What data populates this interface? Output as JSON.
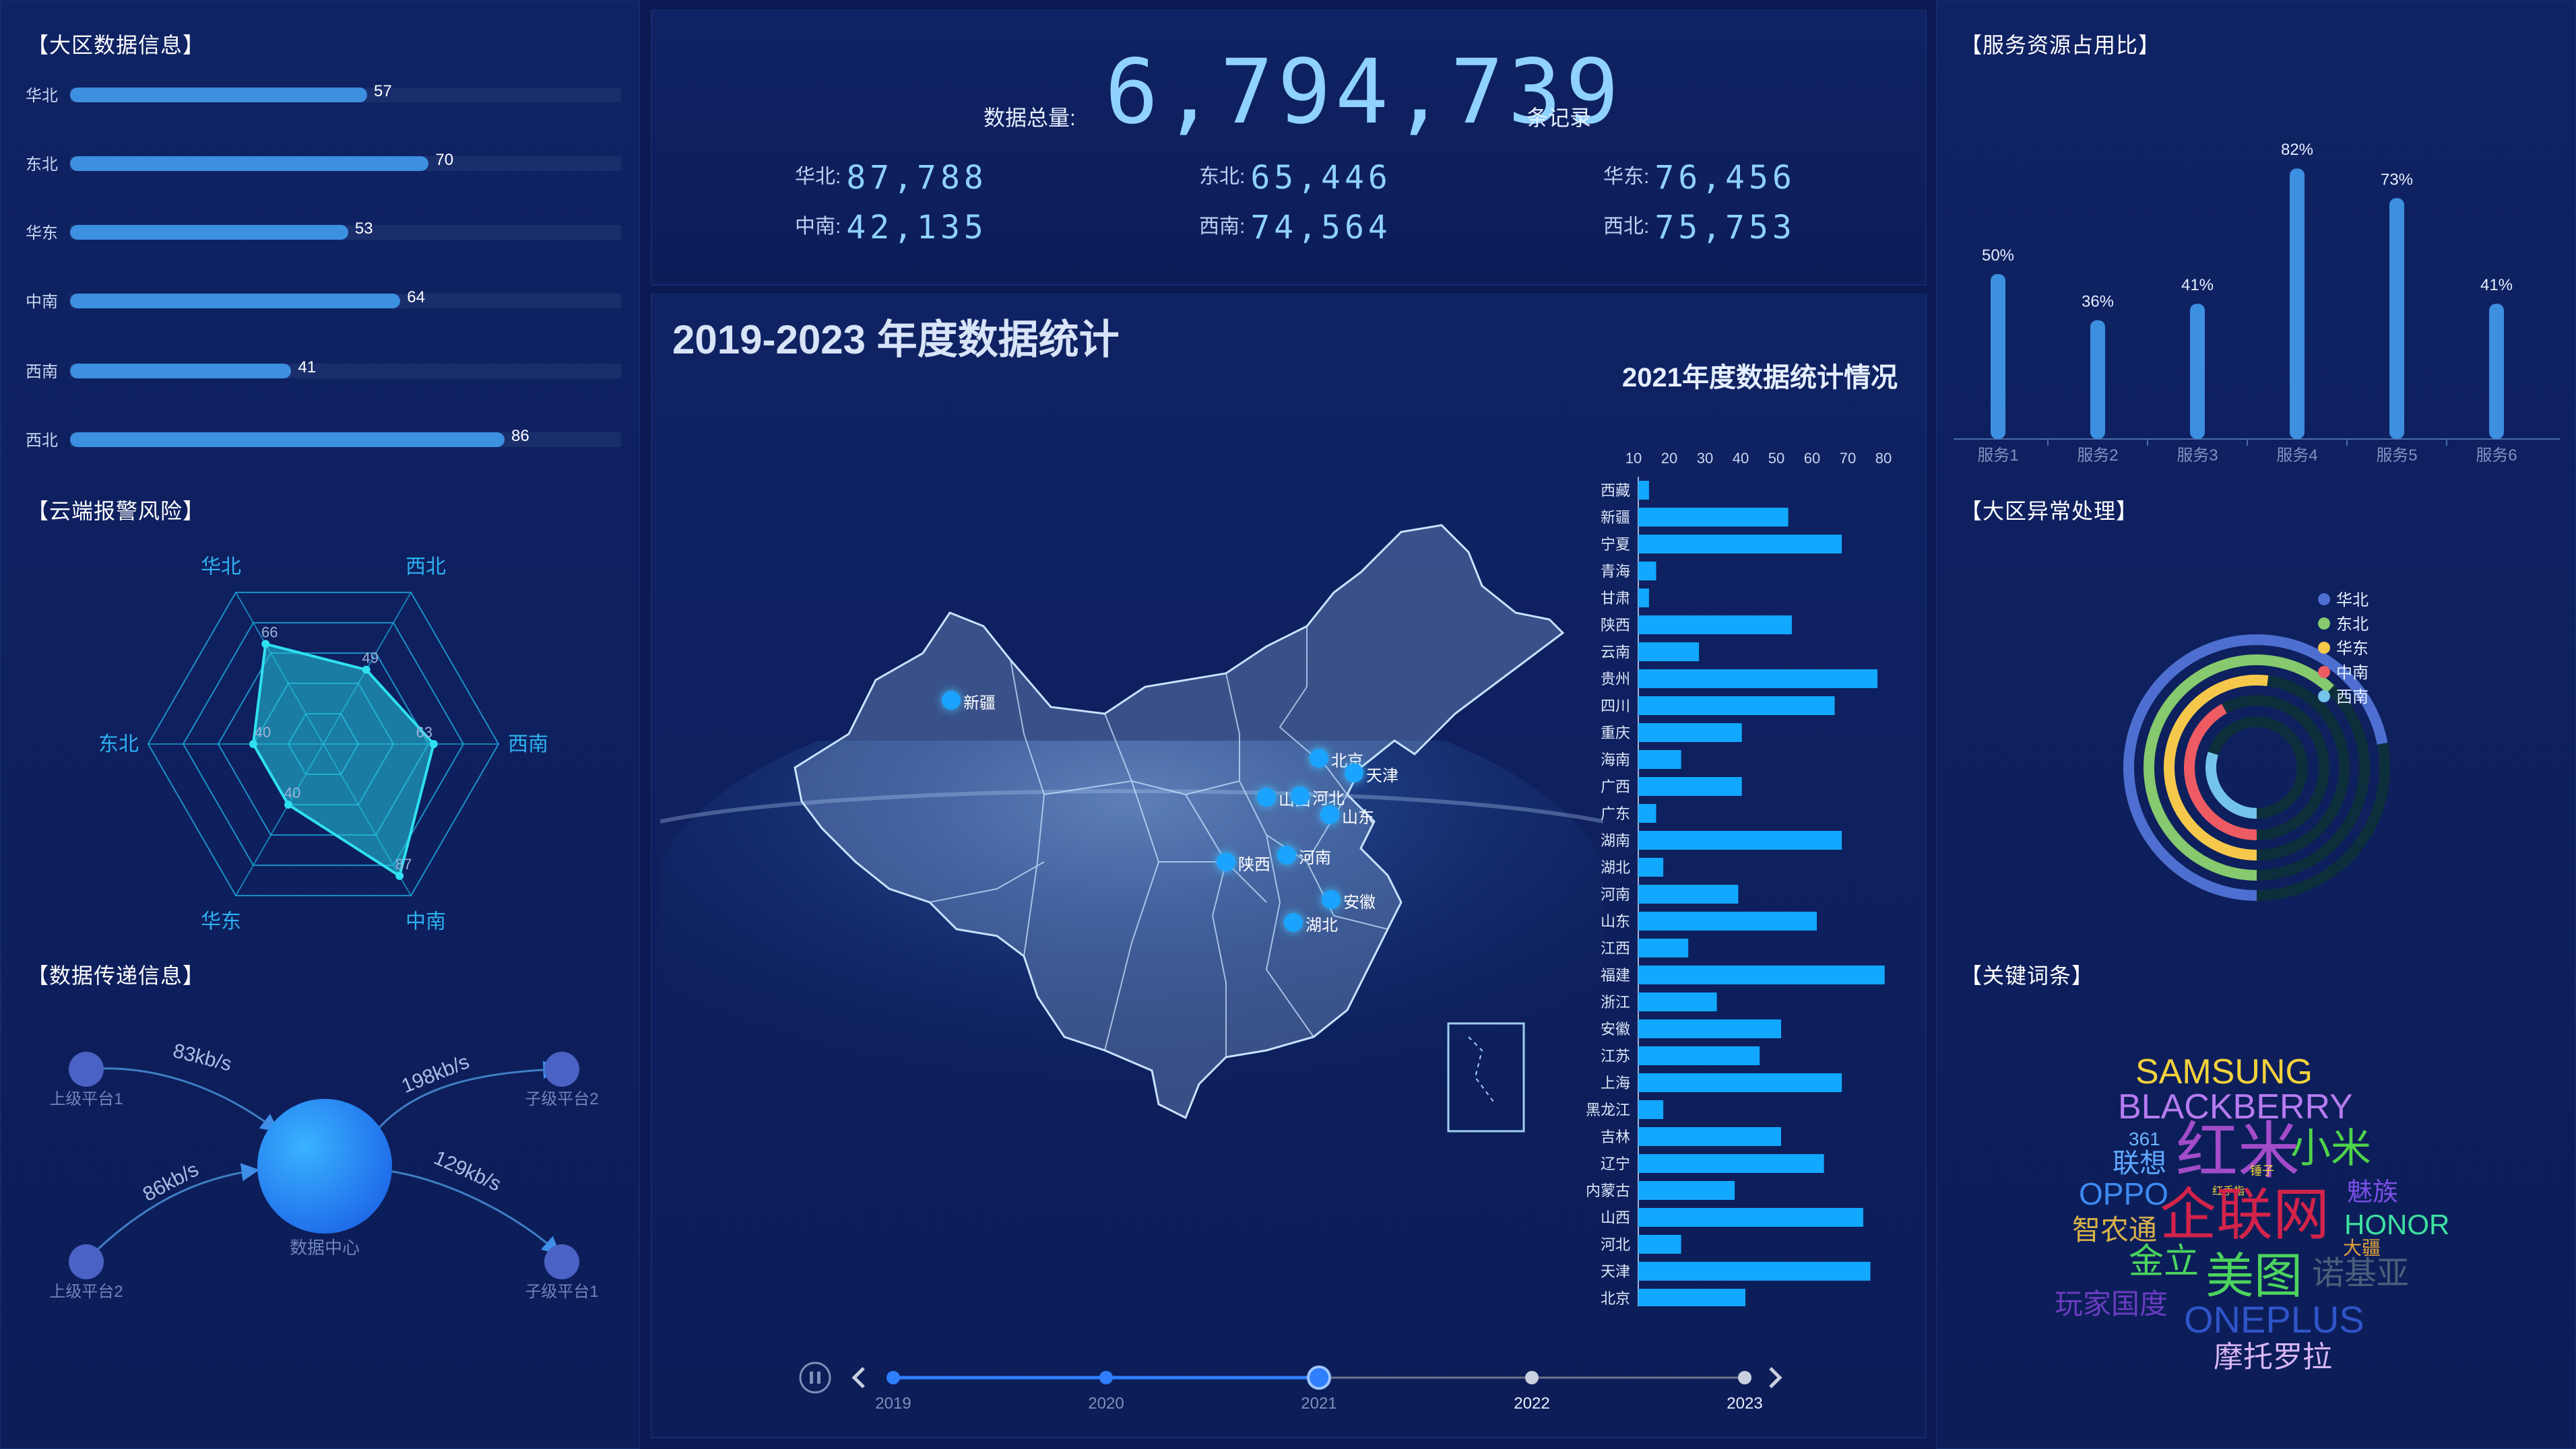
{
  "panels": {
    "region_data": "【大区数据信息】",
    "cloud_alert": "【云端报警风险】",
    "transfer": "【数据传递信息】",
    "service_share": "【服务资源占用比】",
    "region_exception": "【大区异常处理】",
    "keywords": "【关键词条】"
  },
  "region_bars": [
    {
      "label": "华北",
      "value": 57
    },
    {
      "label": "东北",
      "value": 70
    },
    {
      "label": "华东",
      "value": 53
    },
    {
      "label": "中南",
      "value": 64
    },
    {
      "label": "西南",
      "value": 41
    },
    {
      "label": "西北",
      "value": 86
    }
  ],
  "radar": {
    "axes": [
      "华北",
      "西北",
      "西南",
      "中南",
      "华东",
      "东北"
    ],
    "values": [
      66,
      49,
      63,
      87,
      40,
      40
    ],
    "max": 100
  },
  "transfer": {
    "upper1": "上级平台1",
    "upper2": "上级平台2",
    "child1": "子级平台1",
    "child2": "子级平台2",
    "center": "数据中心",
    "rate1": "83kb/s",
    "rate2": "86kb/s",
    "rate3": "198kb/s",
    "rate4": "129kb/s"
  },
  "totals": {
    "label": "数据总量:",
    "value": "6,794,739",
    "unit": "条记录",
    "regions": [
      {
        "label": "华北:",
        "value": "87,788"
      },
      {
        "label": "东北:",
        "value": "65,446"
      },
      {
        "label": "华东:",
        "value": "76,456"
      },
      {
        "label": "中南:",
        "value": "42,135"
      },
      {
        "label": "西南:",
        "value": "74,564"
      },
      {
        "label": "西北:",
        "value": "75,753"
      }
    ]
  },
  "main": {
    "title": "2019-2023 年度数据统计",
    "subtitle": "2021年度数据统计情况"
  },
  "map_labels": [
    "新疆",
    "北京",
    "天津",
    "山西",
    "河北",
    "山东",
    "陕西",
    "河南",
    "安徽",
    "湖北"
  ],
  "timeline": {
    "years": [
      "2019",
      "2020",
      "2021",
      "2022",
      "2023"
    ],
    "current": "2021",
    "colors": {
      "active": "#2f7fff",
      "inactive": "#c9d0e0"
    }
  },
  "chart_data": [
    {
      "type": "bar",
      "orientation": "horizontal",
      "categories": [
        "西藏",
        "新疆",
        "宁夏",
        "青海",
        "甘肃",
        "陕西",
        "云南",
        "贵州",
        "四川",
        "重庆",
        "海南",
        "广西",
        "广东",
        "湖南",
        "湖北",
        "河南",
        "山东",
        "江西",
        "福建",
        "浙江",
        "安徽",
        "江苏",
        "上海",
        "黑龙江",
        "吉林",
        "辽宁",
        "内蒙古",
        "山西",
        "河北",
        "天津",
        "北京"
      ],
      "values": [
        3,
        42,
        57,
        5,
        3,
        43,
        17,
        67,
        55,
        29,
        12,
        29,
        5,
        57,
        7,
        28,
        50,
        14,
        69,
        22,
        40,
        34,
        57,
        7,
        40,
        52,
        27,
        63,
        12,
        65,
        30
      ],
      "xticks": [
        10,
        20,
        30,
        40,
        50,
        60,
        70,
        80
      ],
      "xlim": [
        0,
        80
      ]
    },
    {
      "type": "bar",
      "categories": [
        "服务1",
        "服务2",
        "服务3",
        "服务4",
        "服务5",
        "服务6"
      ],
      "values": [
        50,
        36,
        41,
        82,
        73,
        41
      ],
      "labels": [
        "50%",
        "36%",
        "41%",
        "82%",
        "73%",
        "41%"
      ],
      "ylim": [
        0,
        100
      ]
    },
    {
      "type": "pie",
      "subtype": "polar-radial-bar",
      "series": [
        "华北",
        "东北",
        "华东",
        "中南",
        "西南"
      ],
      "colors": [
        "#4e6fd1",
        "#86c96e",
        "#f5c84c",
        "#ef5b63",
        "#74c3ea"
      ],
      "values": [
        0.72,
        0.62,
        0.52,
        0.42,
        0.3
      ]
    }
  ],
  "keywords": [
    {
      "text": "SAMSUNG",
      "color": "#f2d23b"
    },
    {
      "text": "BLACKBERRY",
      "color": "#b77bf0"
    },
    {
      "text": "361",
      "color": "#69b7ff"
    },
    {
      "text": "联想",
      "color": "#5fa8ff"
    },
    {
      "text": "红米",
      "color": "#a24cc9"
    },
    {
      "text": "锤子",
      "color": "#f2d23b"
    },
    {
      "text": "小米",
      "color": "#4fd34a"
    },
    {
      "text": "OPPO",
      "color": "#3e8af0"
    },
    {
      "text": "红手指",
      "color": "#f2d23b"
    },
    {
      "text": "企联网",
      "color": "#d2234a"
    },
    {
      "text": "魅族",
      "color": "#7a4fe6"
    },
    {
      "text": "HONOR",
      "color": "#3fe0a0"
    },
    {
      "text": "智农通",
      "color": "#d8b24a"
    },
    {
      "text": "大疆",
      "color": "#e0a13a"
    },
    {
      "text": "金立",
      "color": "#4cd45e"
    },
    {
      "text": "美图",
      "color": "#4cd45e"
    },
    {
      "text": "诺基亚",
      "color": "#48607a"
    },
    {
      "text": "玩家国度",
      "color": "#6a3cc0"
    },
    {
      "text": "ONEPLUS",
      "color": "#2f54c8"
    },
    {
      "text": "摩托罗拉",
      "color": "#d9b6f5"
    }
  ]
}
